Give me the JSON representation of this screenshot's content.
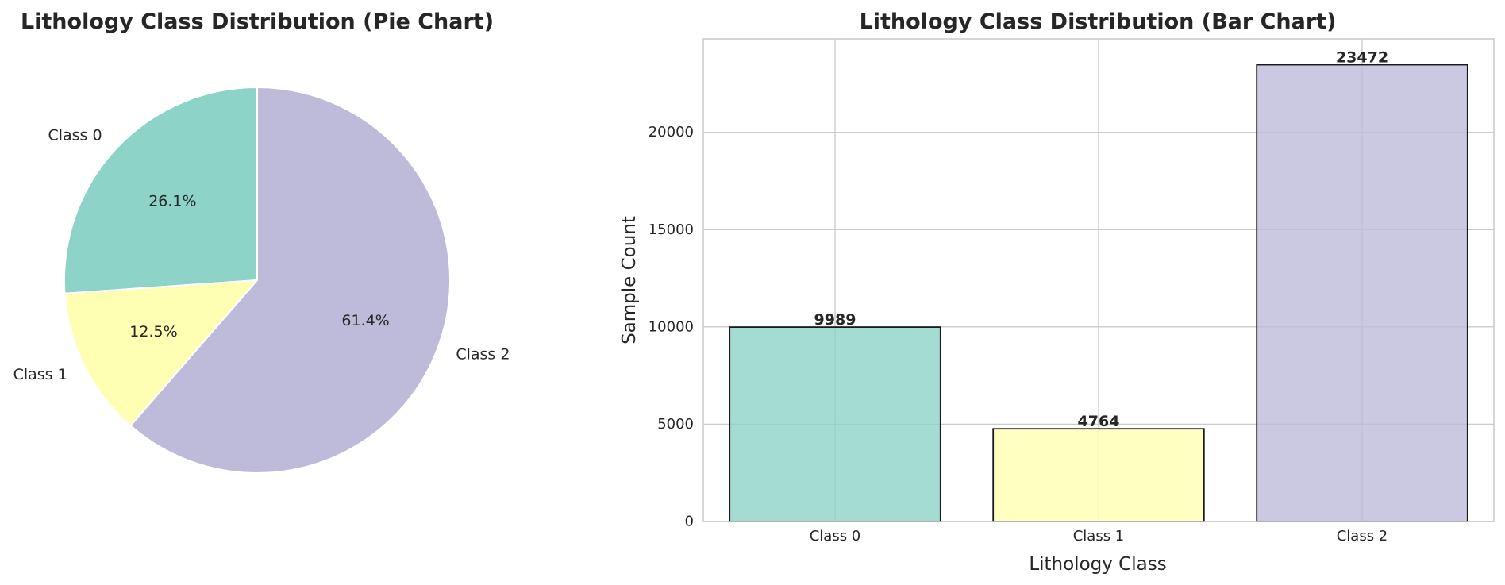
{
  "chart_data": [
    {
      "type": "pie",
      "title": "Lithology Class Distribution (Pie Chart)",
      "categories": [
        "Class 0",
        "Class 1",
        "Class 2"
      ],
      "values": [
        26.1,
        12.5,
        61.4
      ],
      "value_labels": [
        "26.1%",
        "12.5%",
        "61.4%"
      ],
      "colors": [
        "#8dd3c7",
        "#ffffb3",
        "#bebada"
      ],
      "start_angle_deg": 90,
      "direction": "counterclockwise"
    },
    {
      "type": "bar",
      "title": "Lithology Class Distribution (Bar Chart)",
      "xlabel": "Lithology Class",
      "ylabel": "Sample Count",
      "categories": [
        "Class 0",
        "Class 1",
        "Class 2"
      ],
      "values": [
        9989,
        4764,
        23472
      ],
      "value_labels": [
        "9989",
        "4764",
        "23472"
      ],
      "colors": [
        "#8dd3c7",
        "#ffffb3",
        "#bebada"
      ],
      "bar_alpha": 0.8,
      "ylim": [
        0,
        24800
      ],
      "yticks": [
        0,
        5000,
        10000,
        15000,
        20000
      ],
      "ytick_labels": [
        "0",
        "5000",
        "10000",
        "15000",
        "20000"
      ],
      "grid": true
    }
  ]
}
